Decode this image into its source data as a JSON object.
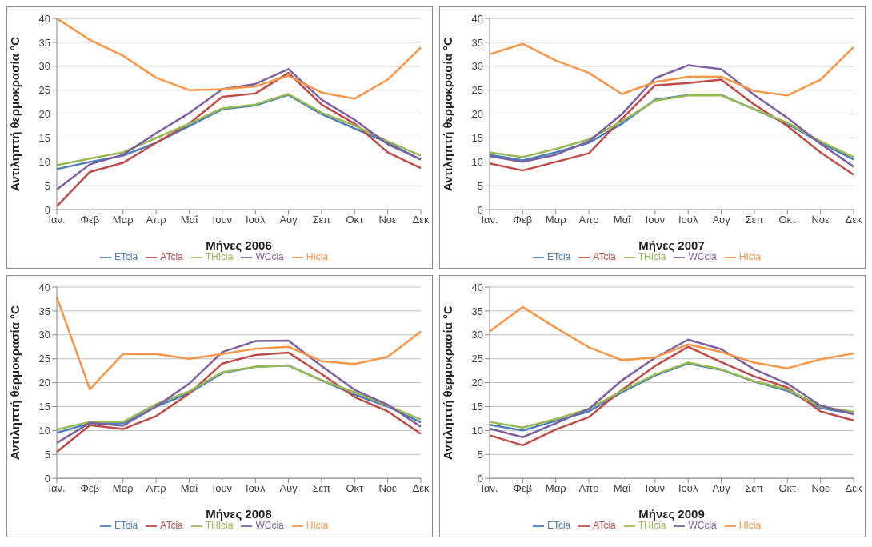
{
  "chart_data": [
    {
      "type": "line",
      "xlabel": "Μήνες 2006",
      "ylabel": "Αντιληπτή θερμοκρασία °C",
      "categories": [
        "Ιαν.",
        "Φεβ",
        "Μαρ",
        "Απρ",
        "Μαΐ",
        "Ιουν",
        "Ιουλ",
        "Αυγ",
        "Σεπ",
        "Οκτ",
        "Νοε",
        "Δεκ"
      ],
      "ylim": [
        0,
        40
      ],
      "yticks": [
        0,
        5,
        10,
        15,
        20,
        25,
        30,
        35,
        40
      ],
      "grid": "y",
      "legend": "bottom",
      "marker": "none",
      "line_style": "solid",
      "series": [
        {
          "name": "ETcia",
          "color": "#4a7ebb",
          "values": [
            8.5,
            10,
            11.3,
            14,
            17.5,
            21,
            21.8,
            24,
            20,
            17,
            14,
            10.5
          ]
        },
        {
          "name": "ATcia",
          "color": "#be4b48",
          "values": [
            0.7,
            7.9,
            9.8,
            14,
            18,
            23.6,
            24.3,
            28.6,
            22,
            18,
            12,
            8.7
          ]
        },
        {
          "name": "THIcia",
          "color": "#98b954",
          "values": [
            9.3,
            10.7,
            12,
            15,
            18,
            21.2,
            22,
            24.2,
            20.3,
            17.6,
            14.3,
            11.3
          ]
        },
        {
          "name": "WCcia",
          "color": "#7d60a0",
          "values": [
            4.2,
            9.5,
            11.5,
            16,
            20.2,
            25.2,
            26.3,
            29.4,
            23,
            18.8,
            13.7,
            10.5
          ]
        },
        {
          "name": "HIcia",
          "color": "#f79646",
          "values": [
            40,
            35.5,
            32.2,
            27.6,
            25,
            25.2,
            25.8,
            28,
            24.5,
            23.2,
            27.2,
            33.9
          ]
        }
      ]
    },
    {
      "type": "line",
      "xlabel": "Μήνες 2007",
      "ylabel": "Αντιληπτή θερμοκρασία °C",
      "categories": [
        "Ιαν.",
        "Φεβ",
        "Μαρ",
        "Απρ",
        "Μαΐ",
        "Ιουν",
        "Ιουλ",
        "Αυγ",
        "Σεπ",
        "Οκτ",
        "Νοε",
        "Δεκ"
      ],
      "ylim": [
        0,
        40
      ],
      "yticks": [
        0,
        5,
        10,
        15,
        20,
        25,
        30,
        35,
        40
      ],
      "grid": "y",
      "legend": "bottom",
      "marker": "none",
      "line_style": "solid",
      "series": [
        {
          "name": "ETcia",
          "color": "#4a7ebb",
          "values": [
            11.5,
            10.3,
            12,
            14,
            18,
            23,
            24,
            24,
            21,
            18,
            14,
            10.5
          ]
        },
        {
          "name": "ATcia",
          "color": "#be4b48",
          "values": [
            9.7,
            8.2,
            10,
            11.8,
            19,
            26,
            26.5,
            27.2,
            22,
            17.5,
            12,
            7.3
          ]
        },
        {
          "name": "THIcia",
          "color": "#98b954",
          "values": [
            12,
            11,
            12.7,
            14.7,
            18.5,
            22.8,
            23.9,
            23.9,
            21,
            18.2,
            14.3,
            11
          ]
        },
        {
          "name": "WCcia",
          "color": "#7d60a0",
          "values": [
            11.2,
            10,
            11.5,
            14.3,
            20,
            27.5,
            30.2,
            29.4,
            24,
            19.2,
            13.8,
            9
          ]
        },
        {
          "name": "HIcia",
          "color": "#f79646",
          "values": [
            32.5,
            34.7,
            31.2,
            28.6,
            24.2,
            26.7,
            27.8,
            27.8,
            24.8,
            23.9,
            27.2,
            34
          ]
        }
      ]
    },
    {
      "type": "line",
      "xlabel": "Μήνες 2008",
      "ylabel": "Αντιληπτή θερμοκρασία °C",
      "categories": [
        "Ιαν.",
        "Φεβ",
        "Μαρ",
        "Απρ",
        "Μαΐ",
        "Ιουν",
        "Ιουλ",
        "Αυγ",
        "Σεπ",
        "Οκτ",
        "Νοε",
        "Δεκ"
      ],
      "ylim": [
        0,
        40
      ],
      "yticks": [
        0,
        5,
        10,
        15,
        20,
        25,
        30,
        35,
        40
      ],
      "grid": "y",
      "legend": "bottom",
      "marker": "none",
      "line_style": "solid",
      "series": [
        {
          "name": "ETcia",
          "color": "#4a7ebb",
          "values": [
            9.5,
            11.5,
            11.5,
            15,
            17.8,
            22,
            23.3,
            23.6,
            20.5,
            17.5,
            15,
            11.7
          ]
        },
        {
          "name": "ATcia",
          "color": "#be4b48",
          "values": [
            5.5,
            11.1,
            10.3,
            13,
            17.7,
            24,
            25.8,
            26.3,
            21.8,
            17,
            14,
            9.3
          ]
        },
        {
          "name": "THIcia",
          "color": "#98b954",
          "values": [
            10.2,
            11.8,
            11.8,
            15.5,
            18.2,
            22.2,
            23.3,
            23.6,
            20.5,
            18,
            15.2,
            12.3
          ]
        },
        {
          "name": "WCcia",
          "color": "#7d60a0",
          "values": [
            7.4,
            11.6,
            11,
            15,
            19.8,
            26.4,
            28.7,
            28.8,
            23.5,
            18.5,
            15.4,
            10.8
          ]
        },
        {
          "name": "HIcia",
          "color": "#f79646",
          "values": [
            37.9,
            18.6,
            26,
            26,
            25,
            26,
            27.1,
            27.5,
            24.5,
            23.9,
            25.4,
            30.7
          ]
        }
      ]
    },
    {
      "type": "line",
      "xlabel": "Μήνες 2009",
      "ylabel": "Αντιληπτή θερμοκρασία °C",
      "categories": [
        "Ιαν.",
        "Φεβ",
        "Μαρ",
        "Απρ",
        "Μαΐ",
        "Ιουν",
        "Ιουλ",
        "Αυγ",
        "Σεπ",
        "Οκτ",
        "Νοε",
        "Δεκ"
      ],
      "ylim": [
        0,
        40
      ],
      "yticks": [
        0,
        5,
        10,
        15,
        20,
        25,
        30,
        35,
        40
      ],
      "grid": "y",
      "legend": "bottom",
      "marker": "none",
      "line_style": "solid",
      "series": [
        {
          "name": "ETcia",
          "color": "#4a7ebb",
          "values": [
            11.2,
            10,
            12,
            14,
            18,
            21.5,
            24,
            22.7,
            20.2,
            18.3,
            14.7,
            13.5
          ]
        },
        {
          "name": "ATcia",
          "color": "#be4b48",
          "values": [
            9,
            6.9,
            10.2,
            12.8,
            18.5,
            23.5,
            27.5,
            24.3,
            21.3,
            19,
            14,
            12.1
          ]
        },
        {
          "name": "THIcia",
          "color": "#98b954",
          "values": [
            11.8,
            10.6,
            12.4,
            14.5,
            18.3,
            21.7,
            24.2,
            22.8,
            20.3,
            18.6,
            15,
            13.9
          ]
        },
        {
          "name": "WCcia",
          "color": "#7d60a0",
          "values": [
            10.4,
            8.6,
            11.5,
            14.5,
            20.5,
            25.2,
            29,
            27,
            22.8,
            19.8,
            15.2,
            13.4
          ]
        },
        {
          "name": "HIcia",
          "color": "#f79646",
          "values": [
            30.7,
            35.8,
            31.5,
            27.4,
            24.7,
            25.3,
            28,
            26.4,
            24.2,
            23,
            24.9,
            26.1
          ]
        }
      ]
    }
  ]
}
